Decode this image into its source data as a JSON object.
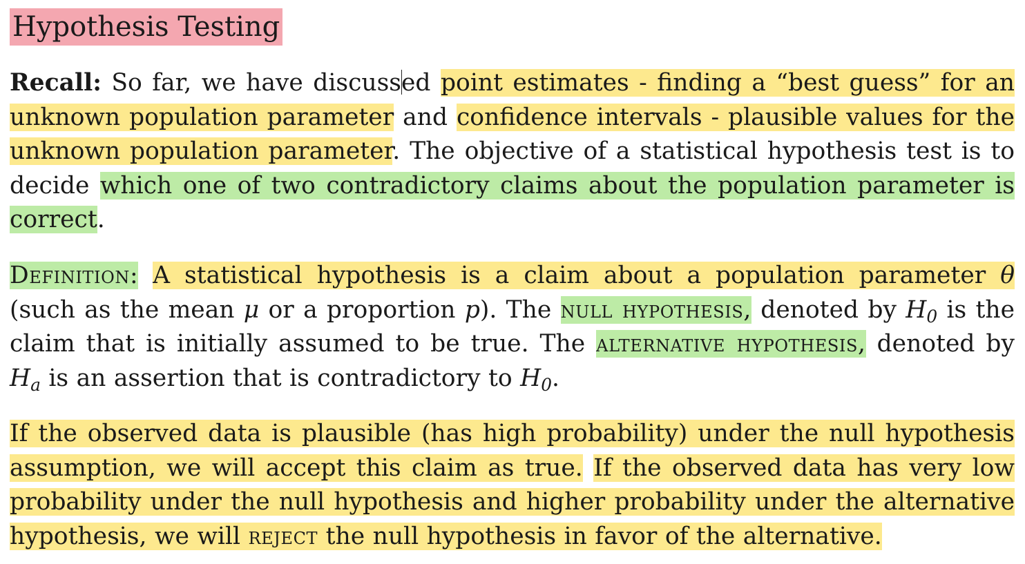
{
  "title": "Hypothesis Testing",
  "recall": {
    "label": "Recall:",
    "text_1": "So far, we have discuss",
    "text_1b": "ed ",
    "hl_point_estimates": "point estimates - finding a “best guess” for an unknown population parameter",
    "text_and": " and ",
    "hl_confidence_intervals": "confidence intervals - plausible values for the unknown population parameter",
    "text_2": ". The objective of a statistical hypothesis test is to decide ",
    "hl_objective": "which one of two contradictory claims about the population parameter is correct",
    "text_end": "."
  },
  "definition": {
    "label": "Definition:",
    "hl_def_1": "A statistical hypothesis is a claim about a population parameter ",
    "theta": "θ",
    "text_1": " (such as the mean ",
    "mu": "μ",
    "text_2": " or a proportion ",
    "p": "p",
    "text_3": "). The ",
    "null_hypothesis": "null hypothesis,",
    "text_4": " denoted by ",
    "h0_base": "H",
    "h0_sub": "0",
    "text_5": " is the claim that is initially assumed to be true. The ",
    "alternative_hypothesis": "alternative hypothesis,",
    "text_6": " denoted by ",
    "ha_base": "H",
    "ha_sub": "a",
    "text_7": " is an assertion that is contradictory to ",
    "h0b_base": "H",
    "h0b_sub": "0",
    "text_8": "."
  },
  "conclusion": {
    "hl_1": "If the observed data is plausible (has high probability) under the null hypothesis assumption, we will accept this claim as true.",
    "space": " ",
    "hl_2a": "If the observed data has very low probability under the null hypothesis and higher probability under the alternative hypothesis, we will ",
    "reject": "reject",
    "hl_2b": " the null hypothesis in favor of the alternative."
  },
  "colors": {
    "title_highlight": "#f4a7b0",
    "yellow_highlight": "#fde98e",
    "green_highlight": "#bdeba6"
  }
}
